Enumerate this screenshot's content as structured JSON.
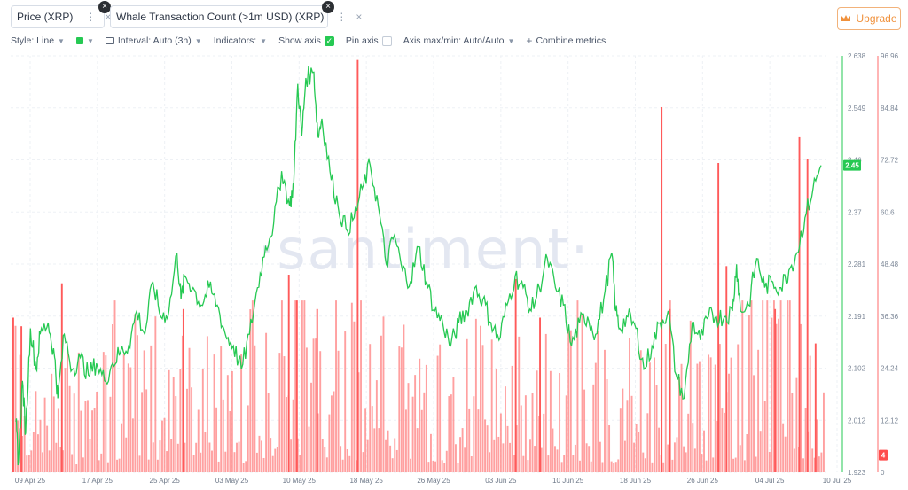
{
  "metrics": [
    {
      "label": "Price (XRP)",
      "color": "#26c953"
    },
    {
      "label": "Whale Transaction Count (>1m USD) (XRP)",
      "color": "#ff6b6b"
    }
  ],
  "metric_menu_icon": "⋮",
  "metric_close_icon": "×",
  "upgrade_label": "Upgrade",
  "toolbar": {
    "style_label": "Style: Line",
    "interval_label": "Interval: Auto (3h)",
    "indicators_label": "Indicators:",
    "show_axis_label": "Show axis",
    "pin_axis_label": "Pin axis",
    "axis_label": "Axis max/min: Auto/Auto",
    "combine_label": "Combine metrics"
  },
  "watermark": "·santiment·",
  "chart_data": {
    "type": "line",
    "x_ticks": [
      "09 Apr 25",
      "17 Apr 25",
      "25 Apr 25",
      "03 May 25",
      "10 May 25",
      "18 May 25",
      "26 May 25",
      "03 Jun 25",
      "10 Jun 25",
      "18 Jun 25",
      "26 Jun 25",
      "04 Jul 25",
      "10 Jul 25"
    ],
    "series": [
      {
        "name": "Price (XRP)",
        "axis": "left",
        "color": "#26c953",
        "ylim": [
          1.923,
          2.638
        ],
        "yticks": [
          "2.638",
          "2.549",
          "2.46",
          "2.37",
          "2.281",
          "2.191",
          "2.102",
          "2.012",
          "1.923"
        ],
        "last_value": "2.45",
        "points": [
          [
            0,
            2.01
          ],
          [
            0.003,
            1.94
          ],
          [
            0.008,
            2.08
          ],
          [
            0.012,
            1.99
          ],
          [
            0.018,
            2.17
          ],
          [
            0.025,
            2.1
          ],
          [
            0.03,
            2.16
          ],
          [
            0.04,
            2.18
          ],
          [
            0.048,
            2.12
          ],
          [
            0.052,
            2.05
          ],
          [
            0.06,
            2.16
          ],
          [
            0.07,
            2.1
          ],
          [
            0.08,
            2.12
          ],
          [
            0.09,
            2.09
          ],
          [
            0.1,
            2.11
          ],
          [
            0.11,
            2.08
          ],
          [
            0.12,
            2.11
          ],
          [
            0.13,
            2.13
          ],
          [
            0.14,
            2.14
          ],
          [
            0.15,
            2.2
          ],
          [
            0.16,
            2.16
          ],
          [
            0.17,
            2.25
          ],
          [
            0.18,
            2.19
          ],
          [
            0.19,
            2.2
          ],
          [
            0.2,
            2.3
          ],
          [
            0.205,
            2.22
          ],
          [
            0.21,
            2.26
          ],
          [
            0.22,
            2.24
          ],
          [
            0.23,
            2.21
          ],
          [
            0.24,
            2.24
          ],
          [
            0.25,
            2.21
          ],
          [
            0.26,
            2.16
          ],
          [
            0.27,
            2.14
          ],
          [
            0.28,
            2.1
          ],
          [
            0.29,
            2.16
          ],
          [
            0.3,
            2.24
          ],
          [
            0.31,
            2.31
          ],
          [
            0.32,
            2.35
          ],
          [
            0.33,
            2.44
          ],
          [
            0.34,
            2.38
          ],
          [
            0.345,
            2.42
          ],
          [
            0.35,
            2.59
          ],
          [
            0.355,
            2.5
          ],
          [
            0.36,
            2.6
          ],
          [
            0.37,
            2.61
          ],
          [
            0.375,
            2.5
          ],
          [
            0.38,
            2.53
          ],
          [
            0.39,
            2.44
          ],
          [
            0.4,
            2.38
          ],
          [
            0.41,
            2.34
          ],
          [
            0.42,
            2.36
          ],
          [
            0.43,
            2.41
          ],
          [
            0.44,
            2.45
          ],
          [
            0.45,
            2.38
          ],
          [
            0.46,
            2.28
          ],
          [
            0.47,
            2.33
          ],
          [
            0.48,
            2.27
          ],
          [
            0.49,
            2.25
          ],
          [
            0.5,
            2.31
          ],
          [
            0.51,
            2.25
          ],
          [
            0.52,
            2.2
          ],
          [
            0.53,
            2.18
          ],
          [
            0.54,
            2.14
          ],
          [
            0.55,
            2.18
          ],
          [
            0.56,
            2.2
          ],
          [
            0.57,
            2.24
          ],
          [
            0.58,
            2.22
          ],
          [
            0.59,
            2.18
          ],
          [
            0.6,
            2.15
          ],
          [
            0.61,
            2.21
          ],
          [
            0.62,
            2.26
          ],
          [
            0.63,
            2.24
          ],
          [
            0.64,
            2.2
          ],
          [
            0.65,
            2.24
          ],
          [
            0.66,
            2.29
          ],
          [
            0.67,
            2.24
          ],
          [
            0.68,
            2.21
          ],
          [
            0.69,
            2.14
          ],
          [
            0.7,
            2.18
          ],
          [
            0.71,
            2.19
          ],
          [
            0.72,
            2.16
          ],
          [
            0.73,
            2.22
          ],
          [
            0.74,
            2.3
          ],
          [
            0.745,
            2.2
          ],
          [
            0.75,
            2.17
          ],
          [
            0.76,
            2.19
          ],
          [
            0.77,
            2.17
          ],
          [
            0.78,
            2.1
          ],
          [
            0.79,
            2.14
          ],
          [
            0.8,
            2.18
          ],
          [
            0.81,
            2.2
          ],
          [
            0.82,
            2.09
          ],
          [
            0.83,
            2.05
          ],
          [
            0.84,
            2.18
          ],
          [
            0.85,
            2.15
          ],
          [
            0.86,
            2.19
          ],
          [
            0.87,
            2.19
          ],
          [
            0.88,
            2.19
          ],
          [
            0.89,
            2.2
          ],
          [
            0.895,
            2.28
          ],
          [
            0.9,
            2.2
          ],
          [
            0.91,
            2.21
          ],
          [
            0.92,
            2.29
          ],
          [
            0.93,
            2.24
          ],
          [
            0.94,
            2.25
          ],
          [
            0.95,
            2.24
          ],
          [
            0.96,
            2.27
          ],
          [
            0.97,
            2.3
          ],
          [
            0.98,
            2.36
          ],
          [
            0.99,
            2.41
          ],
          [
            1.0,
            2.45
          ]
        ]
      },
      {
        "name": "Whale Transaction Count (>1m USD) (XRP)",
        "axis": "right",
        "color": "#ff6b6b",
        "ylim": [
          0,
          96.96
        ],
        "yticks": [
          "96.96",
          "84.84",
          "72.72",
          "60.6",
          "48.48",
          "36.36",
          "24.24",
          "12.12",
          "0"
        ],
        "last_value": "4",
        "spikes": [
          [
            0.0,
            36
          ],
          [
            0.01,
            34
          ],
          [
            0.06,
            44
          ],
          [
            0.21,
            38
          ],
          [
            0.34,
            46
          ],
          [
            0.35,
            40
          ],
          [
            0.375,
            38
          ],
          [
            0.425,
            96
          ],
          [
            0.62,
            45
          ],
          [
            0.65,
            36
          ],
          [
            0.8,
            85
          ],
          [
            0.81,
            38
          ],
          [
            0.87,
            72
          ],
          [
            0.88,
            48
          ],
          [
            0.94,
            38
          ],
          [
            0.97,
            78
          ],
          [
            0.98,
            73
          ],
          [
            0.99,
            30
          ]
        ],
        "baseline_levels": [
          [
            0.0,
            14
          ],
          [
            0.05,
            12
          ],
          [
            0.1,
            10
          ],
          [
            0.13,
            18
          ],
          [
            0.17,
            14
          ],
          [
            0.22,
            16
          ],
          [
            0.27,
            12
          ],
          [
            0.33,
            22
          ],
          [
            0.36,
            28
          ],
          [
            0.4,
            20
          ],
          [
            0.45,
            16
          ],
          [
            0.5,
            12
          ],
          [
            0.55,
            14
          ],
          [
            0.6,
            18
          ],
          [
            0.65,
            14
          ],
          [
            0.7,
            16
          ],
          [
            0.75,
            12
          ],
          [
            0.8,
            14
          ],
          [
            0.85,
            16
          ],
          [
            0.9,
            18
          ],
          [
            0.95,
            22
          ],
          [
            1.0,
            20
          ]
        ]
      }
    ]
  }
}
